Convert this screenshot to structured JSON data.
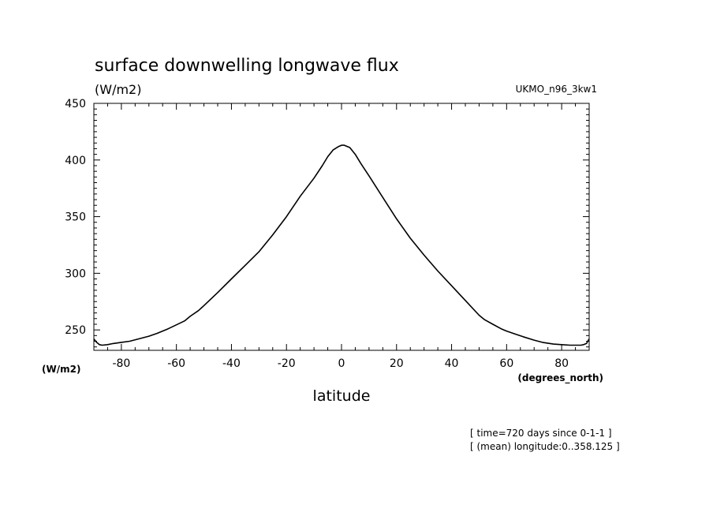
{
  "chart_data": {
    "type": "line",
    "title": "surface downwelling longwave flux",
    "units_top": "(W/m2)",
    "units_left": "(W/m2)",
    "model": "UKMO_n96_3kw1",
    "xlabel": "latitude",
    "xunits": "(degrees_north)",
    "xlim": [
      -90,
      90
    ],
    "ylim": [
      232,
      450
    ],
    "xticks": [
      -80,
      -60,
      -40,
      -20,
      0,
      20,
      40,
      60,
      80
    ],
    "xtick_labels": [
      "-80",
      "-60",
      "-40",
      "-20",
      "0",
      "20",
      "40",
      "60",
      "80"
    ],
    "yticks": [
      250,
      300,
      350,
      400,
      450
    ],
    "ytick_labels": [
      "250",
      "300",
      "350",
      "400",
      "450"
    ],
    "footnotes": [
      "[ time=720 days since 0-1-1 ]",
      "[ (mean) longitude:0..358.125 ]"
    ],
    "series": [
      {
        "x": [
          -90,
          -89,
          -88,
          -87,
          -85,
          -83,
          -80,
          -77,
          -73,
          -70,
          -67,
          -63,
          -60,
          -57,
          -55,
          -52,
          -50,
          -45,
          -40,
          -35,
          -30,
          -25,
          -20,
          -15,
          -10,
          -7,
          -5,
          -3,
          -1,
          0,
          1,
          3,
          5,
          7,
          10,
          15,
          20,
          25,
          30,
          35,
          40,
          45,
          50,
          52,
          55,
          58,
          60,
          63,
          66,
          70,
          73,
          77,
          80,
          83,
          85,
          87,
          88,
          89,
          90
        ],
        "y": [
          242,
          239,
          237,
          236.5,
          237,
          238,
          239,
          240,
          242.5,
          244.5,
          247,
          251,
          254.5,
          258,
          262,
          267,
          271.5,
          283,
          295,
          307,
          319,
          334,
          350,
          368,
          384,
          395,
          403,
          409,
          412,
          413,
          413,
          411,
          405,
          397,
          386,
          367,
          348,
          331,
          316,
          302,
          289,
          276,
          263,
          259,
          255,
          251,
          249,
          246.5,
          244,
          241,
          239,
          237.5,
          237,
          236.5,
          236.5,
          236.5,
          237,
          238,
          242
        ]
      }
    ]
  }
}
